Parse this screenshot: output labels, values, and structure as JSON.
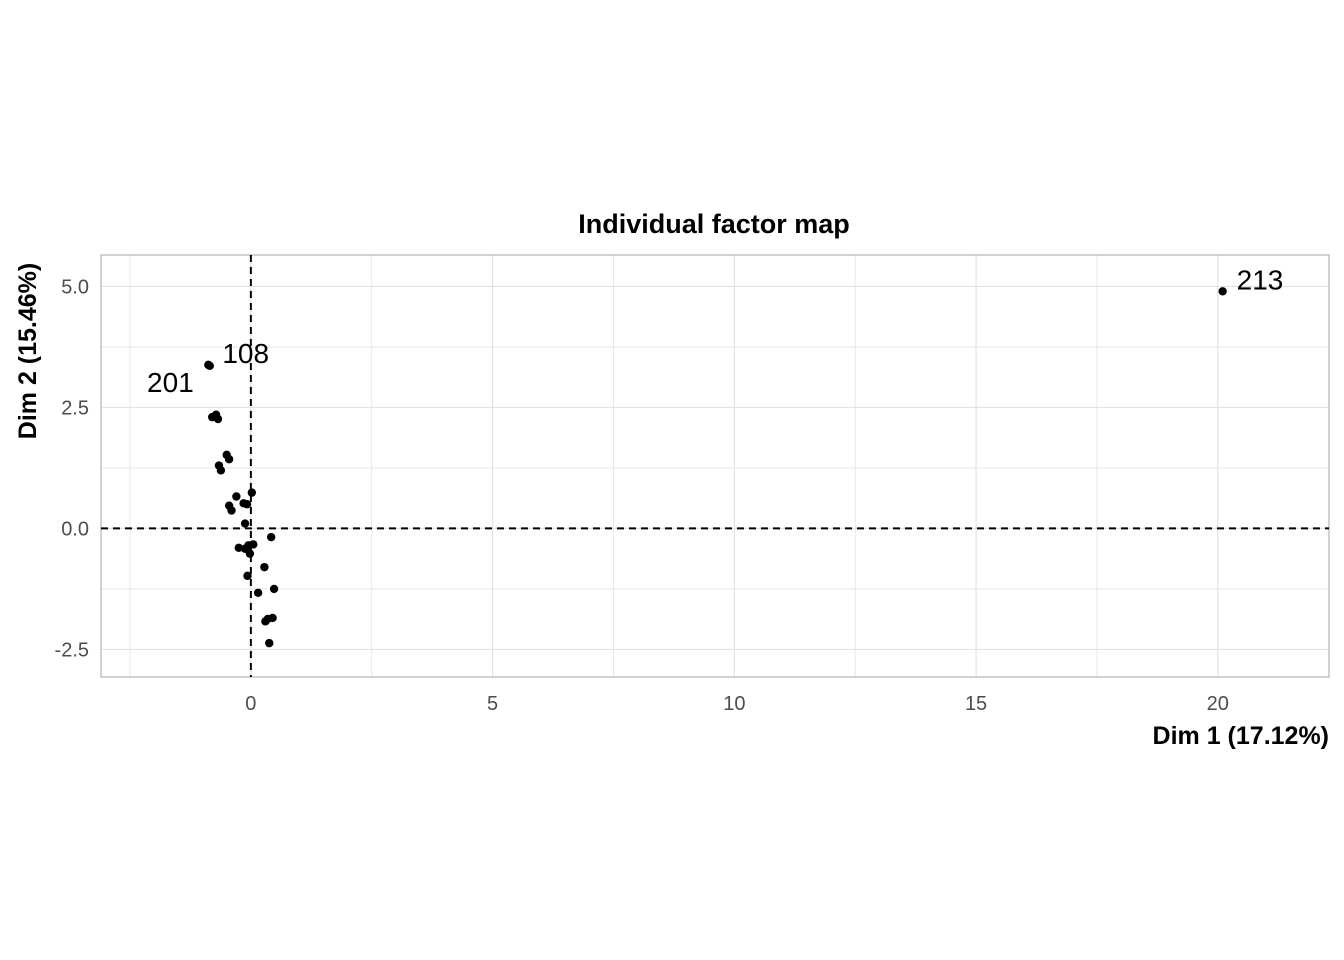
{
  "chart_data": {
    "type": "scatter",
    "title": "Individual factor map",
    "xlabel": "Dim 1 (17.12%)",
    "ylabel": "Dim 2 (15.46%)",
    "xlim": [
      -3.1,
      22.3
    ],
    "ylim": [
      -3.07,
      5.65
    ],
    "x_ticks": [
      0,
      5,
      10,
      15,
      20
    ],
    "x_tick_labels": [
      "0",
      "5",
      "10",
      "15",
      "20"
    ],
    "y_ticks": [
      -2.5,
      0,
      2.5,
      5
    ],
    "y_tick_labels": [
      "-2.5",
      "0.0",
      "2.5",
      "5.0"
    ],
    "grid": true,
    "reference_lines": {
      "x": 0,
      "y": 0,
      "style": "dashed"
    },
    "point_color": "#000000",
    "points": [
      {
        "x": 20.1,
        "y": 4.9,
        "label": "213"
      },
      {
        "x": -0.88,
        "y": 3.38,
        "label": "108"
      },
      {
        "x": -0.85,
        "y": 3.36,
        "label": "201"
      },
      {
        "x": -0.8,
        "y": 2.3
      },
      {
        "x": -0.72,
        "y": 2.35
      },
      {
        "x": -0.68,
        "y": 2.26
      },
      {
        "x": -0.66,
        "y": 1.3
      },
      {
        "x": -0.62,
        "y": 1.2
      },
      {
        "x": -0.5,
        "y": 1.52
      },
      {
        "x": -0.45,
        "y": 1.43
      },
      {
        "x": -0.45,
        "y": 0.47
      },
      {
        "x": -0.4,
        "y": 0.37
      },
      {
        "x": -0.3,
        "y": 0.66
      },
      {
        "x": -0.15,
        "y": 0.52
      },
      {
        "x": -0.08,
        "y": 0.5
      },
      {
        "x": 0.02,
        "y": 0.74
      },
      {
        "x": -0.12,
        "y": 0.1
      },
      {
        "x": -0.25,
        "y": -0.4
      },
      {
        "x": -0.12,
        "y": -0.42
      },
      {
        "x": -0.05,
        "y": -0.35
      },
      {
        "x": 0.05,
        "y": -0.33
      },
      {
        "x": -0.02,
        "y": -0.52
      },
      {
        "x": -0.07,
        "y": -0.98
      },
      {
        "x": 0.28,
        "y": -0.8
      },
      {
        "x": 0.42,
        "y": -0.18
      },
      {
        "x": 0.48,
        "y": -1.25
      },
      {
        "x": 0.15,
        "y": -1.33
      },
      {
        "x": 0.35,
        "y": -1.87
      },
      {
        "x": 0.45,
        "y": -1.85
      },
      {
        "x": 0.3,
        "y": -1.92
      },
      {
        "x": 0.38,
        "y": -2.37
      }
    ]
  }
}
